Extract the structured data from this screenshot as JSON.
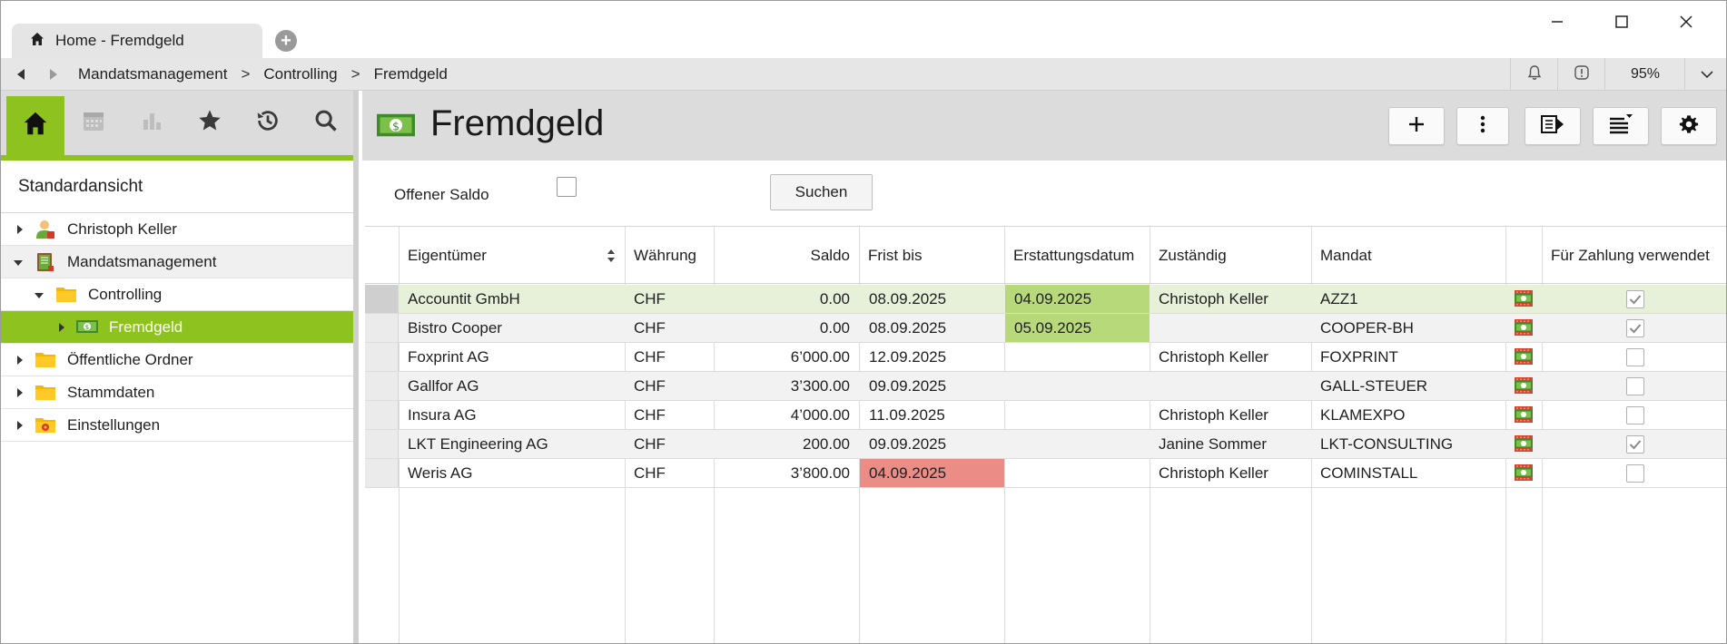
{
  "tab": {
    "title": "Home - Fremdgeld",
    "icon": "home-icon"
  },
  "breadcrumb": [
    "Mandatsmanagement",
    "Controlling",
    "Fremdgeld"
  ],
  "breadcrumb_separator": ">",
  "zoom": "95%",
  "sidebar": {
    "view_title": "Standardansicht",
    "tabs": [
      "home-icon",
      "calendar-icon",
      "bar-chart-icon",
      "star-icon",
      "history-icon",
      "search-icon"
    ],
    "tree": [
      {
        "label": "Christoph Keller",
        "icon": "user-icon",
        "expanded": false,
        "level": 0
      },
      {
        "label": "Mandatsmanagement",
        "icon": "ledger-icon",
        "expanded": true,
        "level": 0
      },
      {
        "label": "Controlling",
        "icon": "folder-icon",
        "expanded": true,
        "level": 1
      },
      {
        "label": "Fremdgeld",
        "icon": "money-icon",
        "expanded": false,
        "level": 2,
        "selected": true
      },
      {
        "label": "Öffentliche Ordner",
        "icon": "folder-icon",
        "expanded": false,
        "level": 0
      },
      {
        "label": "Stammdaten",
        "icon": "folder-icon",
        "expanded": false,
        "level": 0
      },
      {
        "label": "Einstellungen",
        "icon": "settings-folder-icon",
        "expanded": false,
        "level": 0
      }
    ]
  },
  "main": {
    "title": "Fremdgeld",
    "toolbar": [
      "plus-icon",
      "more-vertical-icon",
      "export-icon",
      "list-sort-icon",
      "gear-icon"
    ],
    "filter": {
      "label": "Offener Saldo",
      "checked": false,
      "search_label": "Suchen"
    }
  },
  "table": {
    "columns": [
      "Eigentümer",
      "Währung",
      "Saldo",
      "Frist bis",
      "Erstattungsdatum",
      "Zuständig",
      "Mandat",
      "",
      "Für Zahlung verwendet"
    ],
    "rows": [
      {
        "owner": "Accountit GmbH",
        "currency": "CHF",
        "balance": "0.00",
        "due": "08.09.2025",
        "refund": "04.09.2025",
        "responsible": "Christoph Keller",
        "mandate": "AZZ1",
        "used": true
      },
      {
        "owner": "Bistro Cooper",
        "currency": "CHF",
        "balance": "0.00",
        "due": "08.09.2025",
        "refund": "05.09.2025",
        "responsible": "",
        "mandate": "COOPER-BH",
        "used": true
      },
      {
        "owner": "Foxprint AG",
        "currency": "CHF",
        "balance": "6’000.00",
        "due": "12.09.2025",
        "refund": "",
        "responsible": "Christoph Keller",
        "mandate": "FOXPRINT",
        "used": false
      },
      {
        "owner": "Gallfor AG",
        "currency": "CHF",
        "balance": "3’300.00",
        "due": "09.09.2025",
        "refund": "",
        "responsible": "",
        "mandate": "GALL-STEUER",
        "used": false
      },
      {
        "owner": "Insura AG",
        "currency": "CHF",
        "balance": "4’000.00",
        "due": "11.09.2025",
        "refund": "",
        "responsible": "Christoph Keller",
        "mandate": "KLAMEXPO",
        "used": false
      },
      {
        "owner": "LKT Engineering AG",
        "currency": "CHF",
        "balance": "200.00",
        "due": "09.09.2025",
        "refund": "",
        "responsible": "Janine Sommer",
        "mandate": "LKT-CONSULTING",
        "used": true
      },
      {
        "owner": "Weris AG",
        "currency": "CHF",
        "balance": "3’800.00",
        "due": "04.09.2025",
        "refund": "",
        "responsible": "Christoph Keller",
        "mandate": "COMINSTALL",
        "used": false
      }
    ]
  },
  "colors": {
    "accent_green": "#8dc21f",
    "refund_green": "#b7d97a",
    "overdue_red": "#ec8c86"
  }
}
